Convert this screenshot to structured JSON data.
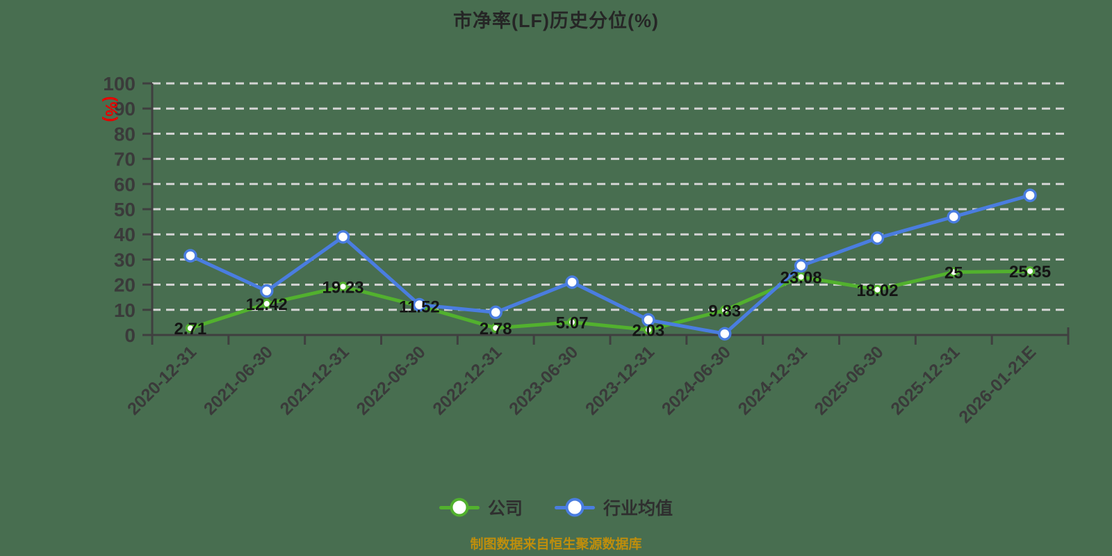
{
  "title": "市净率(LF)历史分位(%)",
  "footer": {
    "source_note": "制图数据来自恒生聚源数据库"
  },
  "legend": {
    "items": [
      {
        "label": "公司",
        "color": "#52b12e"
      },
      {
        "label": "行业均值",
        "color": "#4a7de0"
      }
    ]
  },
  "y_axis": {
    "unit_label": "(%)",
    "min": 0,
    "max": 100,
    "tick_step": 10
  },
  "colors": {
    "background": "#486e50",
    "grid": "#d4d4d4",
    "axis": "#3f3f3f",
    "axis_text": "#3a3a3a",
    "title_text": "#262626",
    "value_label": "#141414",
    "company": "#52b12e",
    "industry": "#4a7de0",
    "unit_label": "#e60000",
    "source_note": "#bf8e0c"
  },
  "chart_data": {
    "type": "line",
    "title": "市净率(LF)历史分位(%)",
    "ylabel": "(%)",
    "ylim": [
      0,
      100
    ],
    "y_tick_step": 10,
    "grid": "horizontal-dashed",
    "legend_position": "bottom",
    "categories": [
      "2020-12-31",
      "2021-06-30",
      "2021-12-31",
      "2022-06-30",
      "2022-12-31",
      "2023-06-30",
      "2023-12-31",
      "2024-06-30",
      "2024-12-31",
      "2025-06-30",
      "2025-12-31",
      "2026-01-21E"
    ],
    "series": [
      {
        "name": "公司",
        "color": "#52b12e",
        "values": [
          2.71,
          12.42,
          19.23,
          11.52,
          2.78,
          5.07,
          2.03,
          9.83,
          23.08,
          18.02,
          25,
          25.35
        ],
        "point_labels": [
          "2.71",
          "12.42",
          "19.23",
          "11.52",
          "2.78",
          "5.07",
          "2.03",
          "9.83",
          "23.08",
          "18.02",
          "25",
          "25.35"
        ]
      },
      {
        "name": "行业均值",
        "color": "#4a7de0",
        "values": [
          31.5,
          17.5,
          39,
          12,
          9,
          21,
          6,
          0.5,
          27.5,
          38.5,
          47,
          55.5
        ],
        "values_estimated": true
      }
    ]
  }
}
